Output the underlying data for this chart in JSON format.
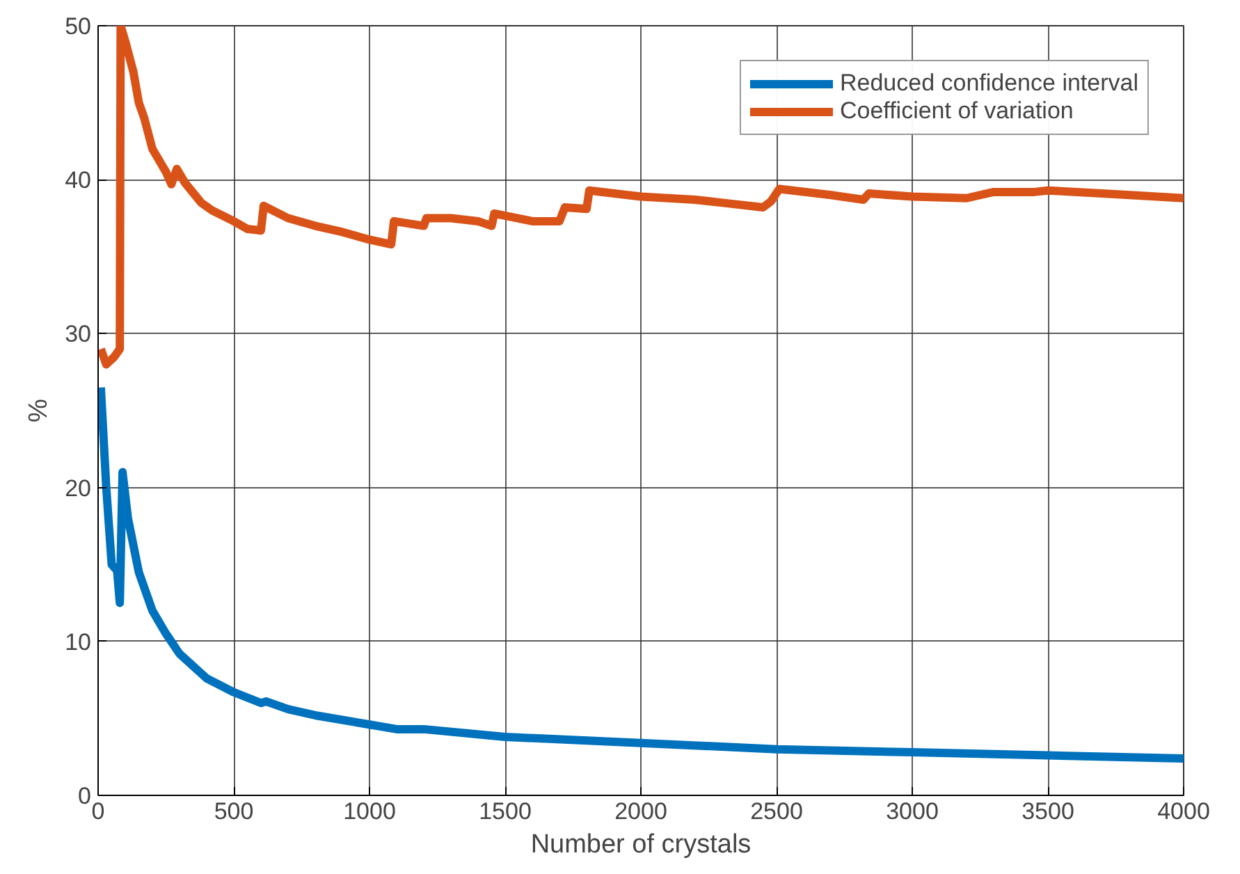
{
  "chart_data": {
    "type": "line",
    "xlabel": "Number of crystals",
    "ylabel": "%",
    "xlim": [
      0,
      4000
    ],
    "ylim": [
      0,
      50
    ],
    "xticks": [
      0,
      500,
      1000,
      1500,
      2000,
      2500,
      3000,
      3500,
      4000
    ],
    "yticks": [
      0,
      10,
      20,
      30,
      40,
      50
    ],
    "grid": true,
    "legend": "top right",
    "line_style": "solid",
    "marker": "none",
    "series": [
      {
        "name": "Reduced confidence interval",
        "color": "#0072bd",
        "x": [
          10,
          30,
          50,
          70,
          80,
          90,
          110,
          150,
          200,
          250,
          300,
          400,
          500,
          600,
          620,
          700,
          800,
          1000,
          1100,
          1200,
          1500,
          2000,
          2500,
          3000,
          3500,
          4000
        ],
        "values": [
          26.5,
          20,
          15,
          14.6,
          12.5,
          21,
          18,
          14.5,
          12,
          10.5,
          9.2,
          7.6,
          6.7,
          6,
          6.1,
          5.6,
          5.2,
          4.6,
          4.3,
          4.3,
          3.8,
          3.4,
          3.0,
          2.8,
          2.6,
          2.4
        ]
      },
      {
        "name": "Coefficient of variation",
        "color": "#d95319",
        "x": [
          10,
          30,
          60,
          80,
          83,
          100,
          130,
          150,
          170,
          200,
          250,
          270,
          290,
          320,
          380,
          420,
          500,
          550,
          600,
          610,
          700,
          800,
          900,
          1000,
          1080,
          1090,
          1200,
          1210,
          1300,
          1400,
          1450,
          1460,
          1600,
          1700,
          1720,
          1800,
          1810,
          1950,
          2000,
          2200,
          2300,
          2450,
          2480,
          2510,
          2700,
          2820,
          2840,
          3000,
          3200,
          3300,
          3450,
          3500,
          3700,
          4000
        ],
        "values": [
          29,
          28,
          28.5,
          29,
          50,
          49,
          47,
          45,
          44,
          42,
          40.5,
          39.7,
          40.7,
          39.8,
          38.5,
          38,
          37.3,
          36.8,
          36.7,
          38.3,
          37.5,
          37,
          36.6,
          36.1,
          35.8,
          37.3,
          37,
          37.5,
          37.5,
          37.3,
          37,
          37.8,
          37.3,
          37.3,
          38.2,
          38.1,
          39.3,
          39,
          38.9,
          38.7,
          38.5,
          38.2,
          38.6,
          39.4,
          39,
          38.7,
          39.1,
          38.9,
          38.8,
          39.2,
          39.2,
          39.3,
          39.1,
          38.8
        ]
      }
    ]
  }
}
